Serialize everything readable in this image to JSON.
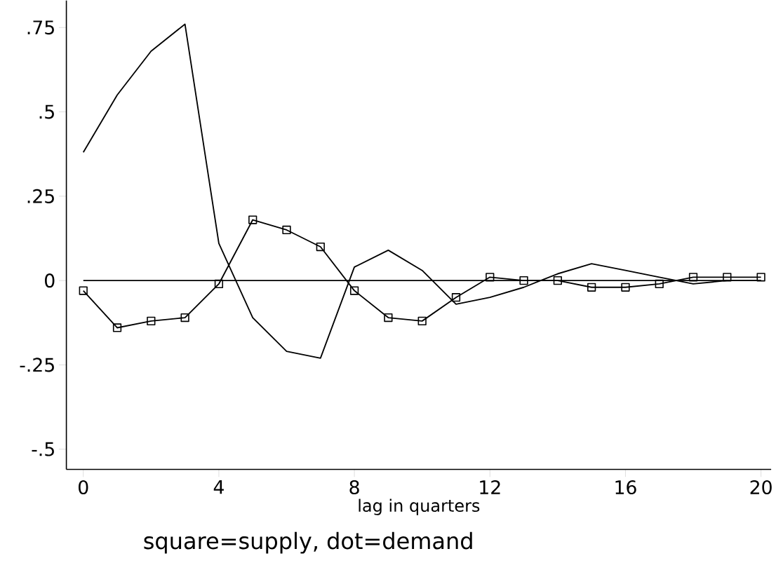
{
  "chart_data": {
    "type": "line",
    "xlabel": "lag in quarters",
    "annotations": [
      "square=supply, dot=demand"
    ],
    "x": [
      0,
      1,
      2,
      3,
      4,
      5,
      6,
      7,
      8,
      9,
      10,
      11,
      12,
      13,
      14,
      15,
      16,
      17,
      18,
      19,
      20
    ],
    "series": [
      {
        "color": "#000000",
        "marker": "square",
        "line_style": "solid",
        "values": [
          -0.03,
          -0.14,
          -0.12,
          -0.11,
          -0.01,
          0.18,
          0.15,
          0.1,
          -0.03,
          -0.11,
          -0.12,
          -0.05,
          0.01,
          0.0,
          0.0,
          -0.02,
          -0.02,
          -0.01,
          0.01,
          0.01,
          0.01
        ]
      },
      {
        "color": "#000000",
        "marker": "none",
        "line_style": "solid",
        "values": [
          0.38,
          0.55,
          0.68,
          0.76,
          0.11,
          -0.11,
          -0.21,
          -0.23,
          0.04,
          0.09,
          0.03,
          -0.07,
          -0.05,
          -0.02,
          0.02,
          0.05,
          0.03,
          0.01,
          -0.01,
          0.0,
          0.0
        ]
      }
    ],
    "xlim": [
      -0.5,
      20.3
    ],
    "ylim": [
      -0.56,
      0.83
    ],
    "xticks": [
      0,
      4,
      8,
      12,
      16,
      20
    ],
    "yticks": [
      {
        "value": -0.5,
        "label": "-.5"
      },
      {
        "value": -0.25,
        "label": "-.25"
      },
      {
        "value": 0,
        "label": "0"
      },
      {
        "value": 0.25,
        "label": ".25"
      },
      {
        "value": 0.5,
        "label": ".5"
      },
      {
        "value": 0.75,
        "label": ".75"
      }
    ],
    "ref_lines": [
      {
        "axis": "y",
        "value": 0,
        "color": "#000000",
        "line_style": "solid"
      }
    ],
    "grid": false
  }
}
